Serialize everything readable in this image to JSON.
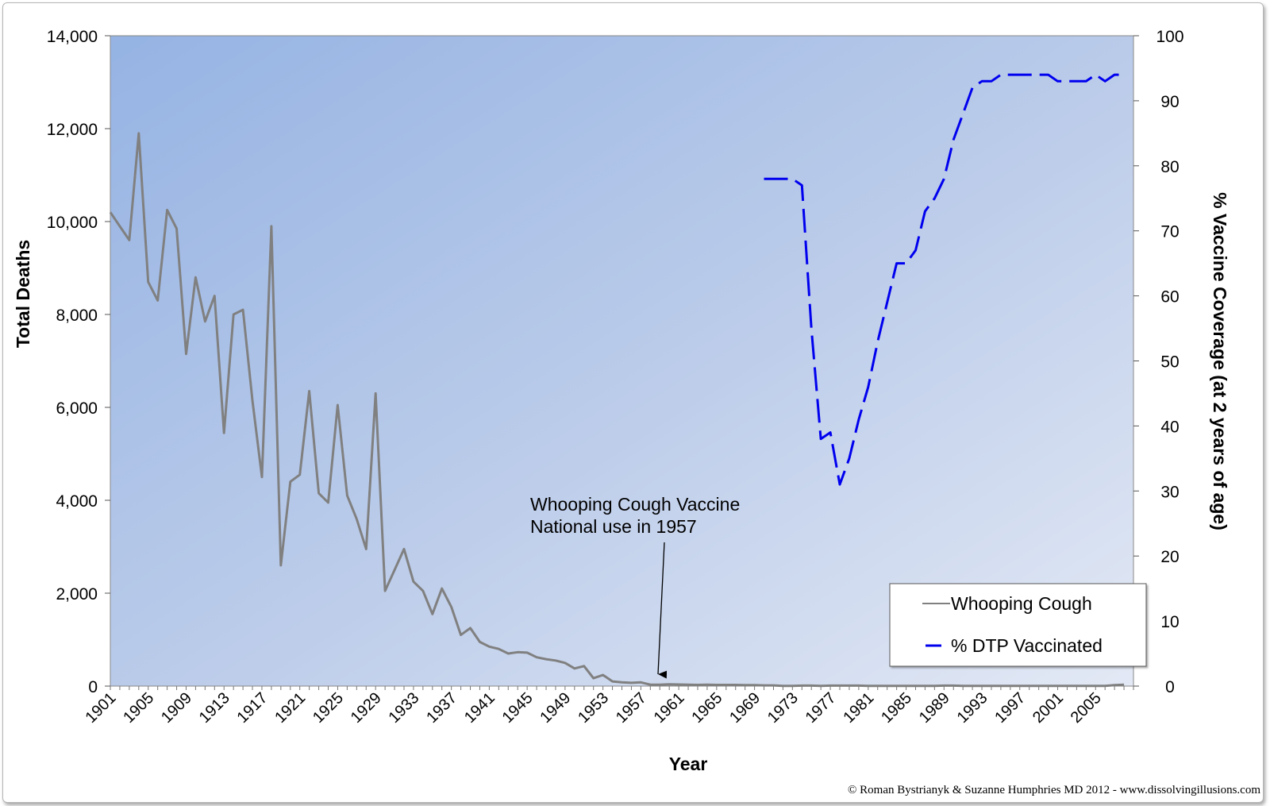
{
  "chart_data": {
    "type": "line",
    "title": "",
    "xlabel": "Year",
    "ylabel": "Total Deaths",
    "y2label": "% Vaccine Coverage (at 2 years of age)",
    "xlim": [
      1901,
      2009
    ],
    "ylim": [
      0,
      14000
    ],
    "y2lim": [
      0,
      100
    ],
    "x_ticks": [
      "1901",
      "1905",
      "1909",
      "1913",
      "1917",
      "1921",
      "1925",
      "1929",
      "1933",
      "1937",
      "1941",
      "1945",
      "1949",
      "1953",
      "1957",
      "1961",
      "1965",
      "1969",
      "1973",
      "1977",
      "1981",
      "1985",
      "1989",
      "1993",
      "1997",
      "2001",
      "2005"
    ],
    "y_ticks": [
      0,
      2000,
      4000,
      6000,
      8000,
      10000,
      12000,
      14000
    ],
    "y_tick_labels": [
      "0",
      "2,000",
      "4,000",
      "6,000",
      "8,000",
      "10,000",
      "12,000",
      "14,000"
    ],
    "y2_ticks": [
      0,
      10,
      20,
      30,
      40,
      50,
      60,
      70,
      80,
      90,
      100
    ],
    "y2_tick_labels": [
      "0",
      "10",
      "20",
      "30",
      "40",
      "50",
      "60",
      "70",
      "80",
      "90",
      "100"
    ],
    "grid": false,
    "legend_position": "bottom-right",
    "series": [
      {
        "name": "Whooping Cough",
        "axis": "left",
        "style": "solid",
        "color": "#808080",
        "x": [
          1901,
          1902,
          1903,
          1904,
          1905,
          1906,
          1907,
          1908,
          1909,
          1910,
          1911,
          1912,
          1913,
          1914,
          1915,
          1916,
          1917,
          1918,
          1919,
          1920,
          1921,
          1922,
          1923,
          1924,
          1925,
          1926,
          1927,
          1928,
          1929,
          1930,
          1931,
          1932,
          1933,
          1934,
          1935,
          1936,
          1937,
          1938,
          1939,
          1940,
          1941,
          1942,
          1943,
          1944,
          1945,
          1946,
          1947,
          1948,
          1949,
          1950,
          1951,
          1952,
          1953,
          1954,
          1955,
          1956,
          1957,
          1958,
          1959,
          1960,
          1961,
          1962,
          1963,
          1964,
          1965,
          1966,
          1967,
          1968,
          1969,
          1970,
          1971,
          1972,
          1973,
          1974,
          1975,
          1976,
          1977,
          1978,
          1979,
          1980,
          1981,
          1982,
          1983,
          1984,
          1985,
          1986,
          1987,
          1988,
          1989,
          1990,
          1991,
          1992,
          1993,
          1994,
          1995,
          1996,
          1997,
          1998,
          1999,
          2000,
          2001,
          2002,
          2003,
          2004,
          2005,
          2006,
          2007,
          2008
        ],
        "values": [
          10200,
          9900,
          9600,
          11900,
          8700,
          8300,
          10250,
          9850,
          7150,
          8800,
          7850,
          8400,
          5450,
          8000,
          8100,
          6150,
          4500,
          9900,
          2600,
          4400,
          4550,
          6350,
          4150,
          3950,
          6050,
          4100,
          3600,
          2950,
          6300,
          2050,
          2500,
          2950,
          2250,
          2050,
          1550,
          2100,
          1700,
          1100,
          1250,
          950,
          850,
          800,
          700,
          730,
          720,
          620,
          580,
          550,
          500,
          380,
          430,
          170,
          240,
          100,
          80,
          70,
          80,
          30,
          30,
          40,
          35,
          30,
          25,
          30,
          25,
          25,
          25,
          20,
          20,
          15,
          15,
          5,
          5,
          10,
          10,
          5,
          10,
          10,
          10,
          10,
          5,
          5,
          5,
          5,
          5,
          5,
          5,
          5,
          10,
          10,
          5,
          5,
          5,
          5,
          5,
          5,
          5,
          5,
          5,
          5,
          5,
          5,
          5,
          5,
          5,
          5,
          20,
          30
        ]
      },
      {
        "name": "% DTP Vaccinated",
        "axis": "right",
        "style": "dashed",
        "color": "#0000ee",
        "x": [
          1970,
          1971,
          1972,
          1973,
          1974,
          1975,
          1976,
          1977,
          1978,
          1979,
          1980,
          1981,
          1982,
          1983,
          1984,
          1985,
          1986,
          1987,
          1988,
          1989,
          1990,
          1991,
          1992,
          1993,
          1994,
          1995,
          1996,
          1997,
          1998,
          1999,
          2000,
          2001,
          2002,
          2003,
          2004,
          2005,
          2006,
          2007,
          2008
        ],
        "values": [
          78,
          78,
          78,
          78,
          77,
          55,
          38,
          39,
          31,
          35,
          41,
          46,
          53,
          59,
          65,
          65,
          67,
          73,
          75,
          78,
          84,
          88,
          92,
          93,
          93,
          94,
          94,
          94,
          94,
          94,
          94,
          93,
          93,
          93,
          93,
          94,
          93,
          94,
          94
        ]
      }
    ],
    "annotations": [
      {
        "text_line1": "Whooping Cough Vaccine",
        "text_line2": "National use  in 1957",
        "x": 1957,
        "arrow": true
      }
    ]
  },
  "footer": {
    "copyright": "© Roman Bystrianyk & Suzanne Humphries MD 2012 - www.dissolvingillusions.com"
  },
  "colors": {
    "plot_bg_start": "#95b3e3",
    "plot_bg_end": "#dfe6f4",
    "whooping_line": "#808080",
    "dtp_line": "#0000ee"
  }
}
